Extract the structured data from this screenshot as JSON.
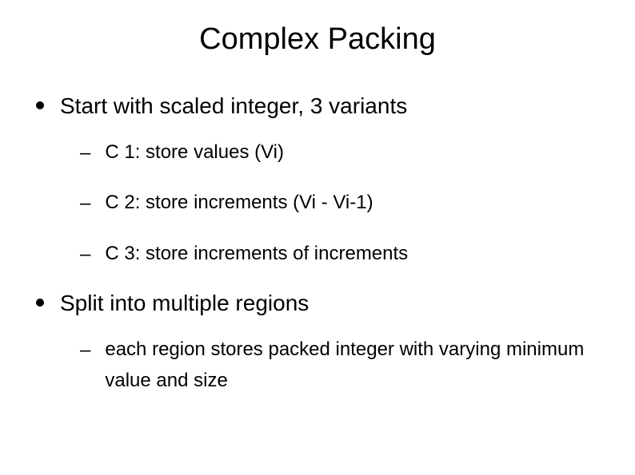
{
  "slide": {
    "title": "Complex Packing",
    "bullets": [
      {
        "text": "Start with scaled integer, 3 variants",
        "sub": [
          "C 1: store values (Vi)",
          "C 2: store increments (Vi - Vi-1)",
          "C 3: store increments of increments"
        ]
      },
      {
        "text": "Split into multiple regions",
        "sub": [
          "each region stores packed integer with varying minimum value and size"
        ]
      }
    ]
  },
  "style": {
    "background_color": "#ffffff",
    "text_color": "#000000",
    "title_fontsize": 38,
    "l1_fontsize": 28,
    "l2_fontsize": 24,
    "font_family": "Arial",
    "l1_bullet": "disc",
    "l2_bullet": "dash",
    "slide_width": 794,
    "slide_height": 595
  }
}
